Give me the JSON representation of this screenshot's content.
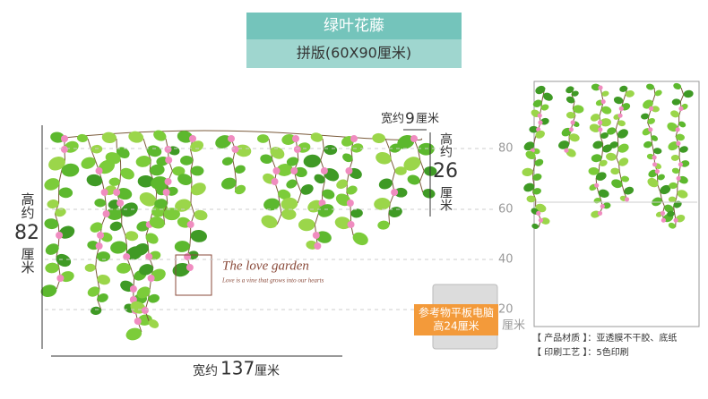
{
  "banner": {
    "title": "绿叶花藤",
    "subtitle": "拼版(60X90厘米)"
  },
  "dimensions": {
    "piece_width": {
      "prefix": "宽约",
      "number": "9",
      "unit": "厘米"
    },
    "piece_height": {
      "prefix": "高约",
      "number": "26",
      "unit": "厘米"
    },
    "total_height": {
      "prefix": "高约",
      "number": "82",
      "unit": "厘米"
    },
    "total_width": {
      "prefix": "宽约",
      "number": "137",
      "unit": "厘米"
    }
  },
  "scale": {
    "labels": [
      "80",
      "60",
      "40",
      "20"
    ],
    "unit": "厘米"
  },
  "reference": {
    "line1": "参考物平板电脑",
    "line2": "高24厘米"
  },
  "artwork": {
    "heading": "The love garden",
    "tagline": "Love is a vine that grows into our hearts"
  },
  "specs": [
    "【 产品材质 】：亚透膜不干胶、底纸",
    "【 印刷工艺 】：5色印刷"
  ]
}
